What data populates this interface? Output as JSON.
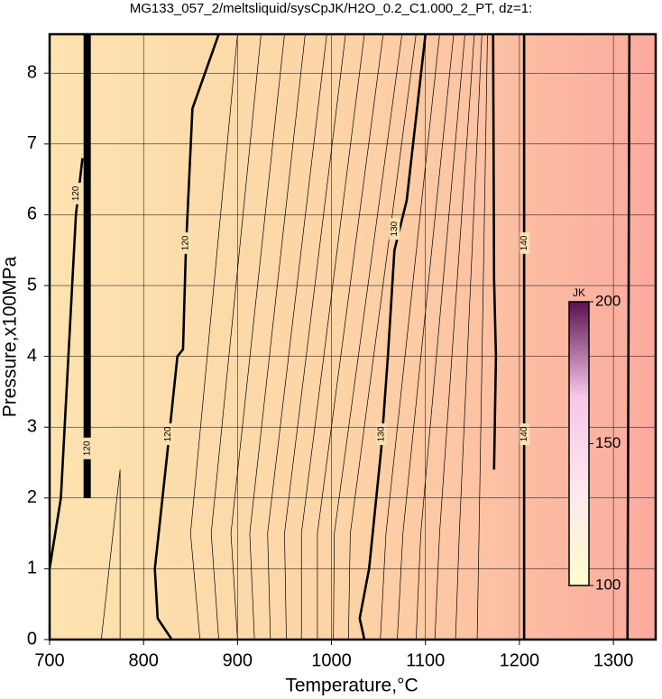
{
  "chart_data": {
    "type": "contour",
    "title": "MG133_057_2/meltsliquid/sysCpJK/H2O_0.2_C1.000_2_PT, dz=1:",
    "x_label": "Temperature,°C",
    "y_label": "Pressure,x100MPa",
    "xlim": [
      700,
      1345
    ],
    "ylim": [
      0,
      8.55
    ],
    "xticks": [
      700,
      800,
      900,
      1000,
      1100,
      1200,
      1300
    ],
    "yticks": [
      0,
      1,
      2,
      3,
      4,
      5,
      6,
      7,
      8
    ],
    "grid": true,
    "fill_colors": [
      "#fde3b0",
      "#fdd3a6",
      "#fcab9f"
    ],
    "line_color": "#000000",
    "contours": [
      {
        "style": "thick",
        "x": [
          740,
          740,
          740,
          740
        ],
        "y": [
          2.0,
          4.0,
          6.0,
          8.55
        ]
      },
      {
        "style": "bold",
        "x": [
          700,
          712,
          720,
          728,
          735
        ],
        "y": [
          1.0,
          2.0,
          4.0,
          6.0,
          6.8
        ]
      },
      {
        "style": "bold",
        "x": [
          830,
          815,
          812,
          825,
          836,
          842,
          845,
          852,
          880
        ],
        "y": [
          0,
          0.3,
          1.0,
          2.6,
          4.0,
          4.1,
          5.5,
          7.5,
          8.55
        ]
      },
      {
        "style": "bold",
        "x": [
          1035,
          1030,
          1040,
          1053,
          1060,
          1067,
          1080,
          1100
        ],
        "y": [
          0,
          0.3,
          1.0,
          2.7,
          4.0,
          5.5,
          6.2,
          8.55
        ]
      },
      {
        "style": "bold",
        "x": [
          1173,
          1175,
          1173,
          1172
        ],
        "y": [
          2.4,
          4.0,
          5.1,
          8.55
        ]
      },
      {
        "style": "bold",
        "x": [
          1205,
          1205
        ],
        "y": [
          0,
          8.55
        ]
      },
      {
        "style": "bold",
        "x": [
          1315,
          1316,
          1317
        ],
        "y": [
          0,
          4.0,
          8.55
        ]
      },
      {
        "style": "thin",
        "x": [
          755,
          775,
          775
        ],
        "y": [
          0,
          2.4,
          0
        ]
      },
      {
        "style": "thin",
        "x": [
          860,
          850,
          900
        ],
        "y": [
          0,
          1.5,
          8.55
        ]
      },
      {
        "style": "thin",
        "x": [
          880,
          872,
          925
        ],
        "y": [
          0,
          1.5,
          8.55
        ]
      },
      {
        "style": "thin",
        "x": [
          900,
          893,
          950
        ],
        "y": [
          0,
          1.5,
          8.55
        ]
      },
      {
        "style": "thin",
        "x": [
          918,
          913,
          972
        ],
        "y": [
          0,
          1.5,
          8.55
        ]
      },
      {
        "style": "thin",
        "x": [
          935,
          932,
          995
        ],
        "y": [
          0,
          1.5,
          8.55
        ]
      },
      {
        "style": "thin",
        "x": [
          952,
          950,
          1015
        ],
        "y": [
          0,
          1.5,
          8.55
        ]
      },
      {
        "style": "thin",
        "x": [
          968,
          968,
          1035
        ],
        "y": [
          0,
          1.5,
          8.55
        ]
      },
      {
        "style": "thin",
        "x": [
          985,
          985,
          1055
        ],
        "y": [
          0,
          1.5,
          8.55
        ]
      },
      {
        "style": "thin",
        "x": [
          1002,
          1003,
          1075
        ],
        "y": [
          0,
          1.5,
          8.55
        ]
      },
      {
        "style": "thin",
        "x": [
          1018,
          1020,
          1090
        ],
        "y": [
          0,
          1.5,
          8.55
        ]
      },
      {
        "style": "thin",
        "x": [
          1052,
          1058,
          1115
        ],
        "y": [
          0,
          1.5,
          8.55
        ]
      },
      {
        "style": "thin",
        "x": [
          1070,
          1076,
          1130
        ],
        "y": [
          0,
          1.5,
          8.55
        ]
      },
      {
        "style": "thin",
        "x": [
          1090,
          1095,
          1142
        ],
        "y": [
          0,
          1.5,
          8.55
        ]
      },
      {
        "style": "thin",
        "x": [
          1110,
          1115,
          1152
        ],
        "y": [
          0,
          1.5,
          8.55
        ]
      },
      {
        "style": "thin",
        "x": [
          1132,
          1136,
          1160
        ],
        "y": [
          0,
          1.5,
          8.55
        ]
      },
      {
        "style": "thin",
        "x": [
          1155,
          1157,
          1166
        ],
        "y": [
          0,
          1.5,
          8.55
        ]
      }
    ],
    "contour_labels": [
      {
        "text": "120",
        "x": 740,
        "y": 2.7
      },
      {
        "text": "120",
        "x": 728,
        "y": 6.3
      },
      {
        "text": "120",
        "x": 826,
        "y": 2.9
      },
      {
        "text": "120",
        "x": 845,
        "y": 5.6
      },
      {
        "text": "130",
        "x": 1053,
        "y": 2.9
      },
      {
        "text": "130",
        "x": 1067,
        "y": 5.8
      },
      {
        "text": "140",
        "x": 1205,
        "y": 2.9
      },
      {
        "text": "140",
        "x": 1205,
        "y": 5.6
      }
    ],
    "colorbar": {
      "label": "JK",
      "lim": [
        100,
        200
      ],
      "ticks": [
        100,
        150,
        200
      ],
      "colors": [
        "#fffccc",
        "#fde8ee",
        "#f7c6e8",
        "#5b1050"
      ]
    }
  }
}
